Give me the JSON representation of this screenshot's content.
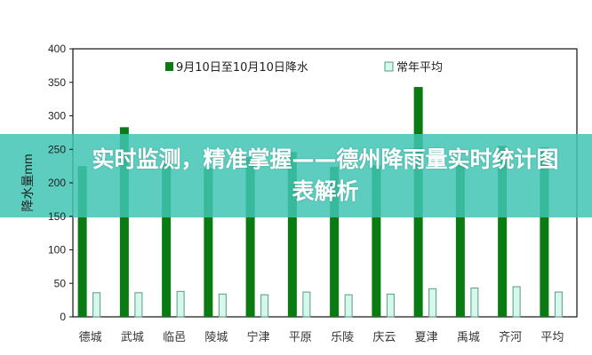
{
  "chart_data": {
    "type": "bar",
    "ylabel": "降水量mm",
    "ylim": [
      0,
      400
    ],
    "yticks": [
      0,
      50,
      100,
      150,
      200,
      250,
      300,
      350,
      400
    ],
    "categories": [
      "德城",
      "武城",
      "临邑",
      "陵城",
      "宁津",
      "平原",
      "乐陵",
      "庆云",
      "夏津",
      "禹城",
      "齐河",
      "平均"
    ],
    "series": [
      {
        "name": "9月10日至10月10日降水",
        "color": "#0a7a12",
        "values": [
          225,
          283,
          234,
          222,
          238,
          246,
          224,
          226,
          343,
          230,
          255,
          253
        ]
      },
      {
        "name": "常年平均",
        "color": "#d4f8ec",
        "values": [
          36,
          36,
          38,
          34,
          33,
          37,
          33,
          34,
          42,
          43,
          45,
          37
        ]
      }
    ],
    "legend": "top",
    "grid": false
  },
  "banner": {
    "title": "实时监测，精准掌握——德州降雨量实时统计图表解析"
  }
}
